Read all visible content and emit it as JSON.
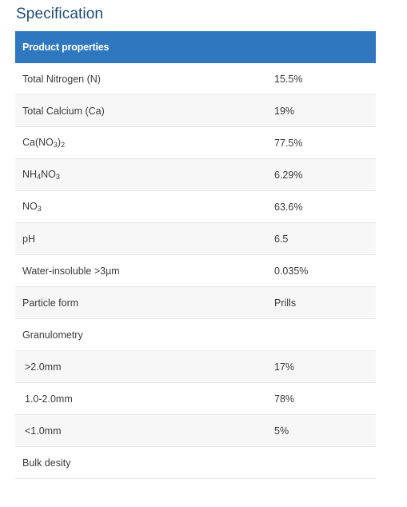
{
  "heading": "Specification",
  "table": {
    "header": "Product properties",
    "rows": [
      {
        "property": "Total Nitrogen (N)",
        "value": "15.5%"
      },
      {
        "property": "Total Calcium (Ca)",
        "value": "19%"
      },
      {
        "property_parts": [
          "Ca(NO",
          "3",
          ")",
          "2"
        ],
        "value": "77.5%"
      },
      {
        "property_parts": [
          "NH",
          "4",
          "NO",
          "3"
        ],
        "value": "6.29%"
      },
      {
        "property_parts": [
          "NO",
          "3"
        ],
        "value": "63.6%"
      },
      {
        "property": "pH",
        "value": "6.5"
      },
      {
        "property": "Water-insoluble >3µm",
        "value": "0.035%"
      },
      {
        "property": "Particle form",
        "value": "Prills"
      },
      {
        "property": "Granulometry",
        "value": ""
      },
      {
        "property": ">2.0mm",
        "value": "17%"
      },
      {
        "property": "1.0-2.0mm",
        "value": "78%"
      },
      {
        "property": "<1.0mm",
        "value": "5%"
      },
      {
        "property": "Bulk desity",
        "value": ""
      }
    ]
  }
}
